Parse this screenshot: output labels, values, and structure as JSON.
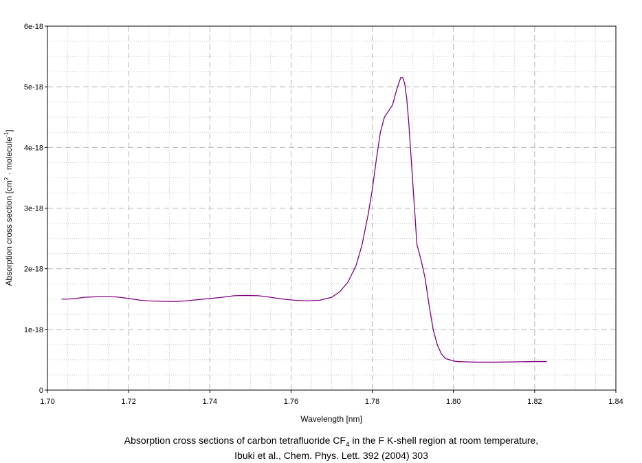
{
  "chart_data": {
    "type": "line",
    "xlabel": "Wavelength [nm]",
    "ylabel": {
      "prefix": "Absorption cross section [cm",
      "sup1": "2",
      "middle": " · molecule",
      "sup2": "-1",
      "suffix": "]"
    },
    "xlim": [
      1.7,
      1.84
    ],
    "ylim": [
      0,
      6e-18
    ],
    "x_ticks": [
      "1.70",
      "1.72",
      "1.74",
      "1.76",
      "1.78",
      "1.80",
      "1.82",
      "1.84"
    ],
    "y_ticks": [
      "0",
      "1e-18",
      "2e-18",
      "3e-18",
      "4e-18",
      "5e-18",
      "6e-18"
    ],
    "grid": true,
    "line_color": "#800080",
    "series": [
      {
        "x": [
          1.7035,
          1.705,
          1.707,
          1.709,
          1.711,
          1.713,
          1.715,
          1.717,
          1.719,
          1.721,
          1.723,
          1.725,
          1.728,
          1.731,
          1.734,
          1.737,
          1.74,
          1.743,
          1.746,
          1.749,
          1.752,
          1.755,
          1.758,
          1.761,
          1.764,
          1.767,
          1.77,
          1.772,
          1.774,
          1.776,
          1.7775,
          1.779,
          1.78,
          1.781,
          1.782,
          1.783,
          1.784,
          1.785,
          1.786,
          1.787,
          1.7875,
          1.788,
          1.7885,
          1.789,
          1.7895,
          1.79,
          1.791,
          1.792,
          1.793,
          1.794,
          1.795,
          1.796,
          1.797,
          1.798,
          1.799,
          1.8,
          1.801,
          1.803,
          1.806,
          1.81,
          1.815,
          1.82,
          1.823
        ],
        "y": [
          1.5e-18,
          1.5e-18,
          1.51e-18,
          1.53e-18,
          1.535e-18,
          1.54e-18,
          1.54e-18,
          1.535e-18,
          1.52e-18,
          1.5e-18,
          1.48e-18,
          1.47e-18,
          1.465e-18,
          1.46e-18,
          1.47e-18,
          1.49e-18,
          1.51e-18,
          1.53e-18,
          1.555e-18,
          1.56e-18,
          1.555e-18,
          1.53e-18,
          1.5e-18,
          1.48e-18,
          1.47e-18,
          1.48e-18,
          1.53e-18,
          1.62e-18,
          1.78e-18,
          2.05e-18,
          2.4e-18,
          2.9e-18,
          3.3e-18,
          3.8e-18,
          4.25e-18,
          4.5e-18,
          4.6e-18,
          4.7e-18,
          4.95e-18,
          5.15e-18,
          5.15e-18,
          5.05e-18,
          4.8e-18,
          4.4e-18,
          3.9e-18,
          3.4e-18,
          2.4e-18,
          2.15e-18,
          1.85e-18,
          1.4e-18,
          1e-18,
          7.5e-19,
          6e-19,
          5.2e-19,
          5e-19,
          4.8e-19,
          4.7e-19,
          4.65e-19,
          4.6e-19,
          4.6e-19,
          4.65e-19,
          4.7e-19,
          4.7e-19
        ]
      }
    ]
  },
  "caption": {
    "line1_prefix": "Absorption cross sections of carbon tetrafluoride CF",
    "line1_sub": "4",
    "line1_suffix": " in the F K-shell region at room temperature,",
    "line2": "Ibuki et al., Chem. Phys. Lett. 392 (2004) 303"
  }
}
